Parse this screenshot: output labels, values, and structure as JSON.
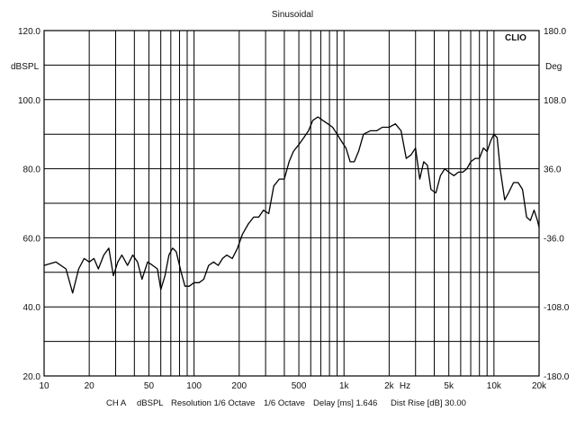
{
  "chart_data": {
    "type": "line",
    "title": "Sinusoidal",
    "brand": "CLIO",
    "xscale": "log",
    "xlim": [
      10,
      20000
    ],
    "ylim": [
      20,
      120
    ],
    "y2lim": [
      -180,
      180
    ],
    "ylabel": "dBSPL",
    "y2label": "Deg",
    "xunit_label": "Hz",
    "grid": true,
    "x_ticks": [
      {
        "value": 10,
        "label": "10"
      },
      {
        "value": 20,
        "label": "20"
      },
      {
        "value": 50,
        "label": "50"
      },
      {
        "value": 100,
        "label": "100"
      },
      {
        "value": 200,
        "label": "200"
      },
      {
        "value": 500,
        "label": "500"
      },
      {
        "value": 1000,
        "label": "1k"
      },
      {
        "value": 2000,
        "label": "2k"
      },
      {
        "value": 5000,
        "label": "5k"
      },
      {
        "value": 10000,
        "label": "10k"
      },
      {
        "value": 20000,
        "label": "20k"
      }
    ],
    "y_ticks": [
      {
        "value": 120,
        "label": "120.0"
      },
      {
        "value": 100,
        "label": "100.0"
      },
      {
        "value": 80,
        "label": "80.0"
      },
      {
        "value": 60,
        "label": "60.0"
      },
      {
        "value": 40,
        "label": "40.0"
      },
      {
        "value": 20,
        "label": "20.0"
      }
    ],
    "y2_ticks": [
      {
        "value": 180,
        "label": "180.0"
      },
      {
        "value": 108,
        "label": "108.0"
      },
      {
        "value": 36,
        "label": "36.0"
      },
      {
        "value": -36,
        "label": "-36.0"
      },
      {
        "value": -108,
        "label": "-108.0"
      },
      {
        "value": -180,
        "label": "-180.0"
      }
    ],
    "series": [
      {
        "color": "#000000",
        "x": [
          10,
          12,
          14,
          15.5,
          17,
          18.5,
          20,
          21.5,
          23,
          25,
          27,
          29,
          31,
          33,
          36,
          39,
          42,
          45,
          49,
          53,
          57,
          60,
          64,
          68,
          72,
          76,
          82,
          87,
          93,
          100,
          108,
          116,
          125,
          135,
          145,
          155,
          165,
          180,
          195,
          210,
          230,
          250,
          270,
          290,
          315,
          340,
          370,
          400,
          430,
          460,
          500,
          540,
          580,
          620,
          670,
          720,
          780,
          840,
          900,
          960,
          1030,
          1100,
          1170,
          1250,
          1350,
          1500,
          1650,
          1800,
          2000,
          2200,
          2400,
          2600,
          2800,
          3000,
          3200,
          3400,
          3600,
          3800,
          4100,
          4400,
          4700,
          5000,
          5400,
          5800,
          6200,
          6600,
          7000,
          7500,
          8000,
          8500,
          9000,
          9500,
          10000,
          10500,
          11000,
          11800,
          12500,
          13500,
          14500,
          15500,
          16500,
          17500,
          18500,
          19500,
          20000
        ],
        "y": [
          52,
          53,
          51,
          44,
          51,
          54,
          53,
          54,
          51,
          55,
          57,
          49,
          53,
          55,
          52,
          55,
          53,
          48,
          53,
          52,
          51,
          45,
          49,
          55,
          57,
          56,
          50,
          46,
          46,
          47,
          47,
          48,
          52,
          53,
          52,
          54,
          55,
          54,
          57,
          61,
          64,
          66,
          66,
          68,
          67,
          75,
          77,
          77,
          82,
          85,
          87,
          89,
          91,
          94,
          95,
          94,
          93,
          92,
          90,
          88,
          86,
          82,
          82,
          85,
          90,
          91,
          91,
          92,
          92,
          93,
          91,
          83,
          84,
          86,
          77,
          82,
          81,
          74,
          73,
          78,
          80,
          79,
          78,
          79,
          79,
          80,
          82,
          83,
          83,
          86,
          85,
          88,
          90,
          89,
          80,
          71,
          73,
          76,
          76,
          74,
          66,
          65,
          68,
          65,
          63
        ]
      }
    ]
  },
  "footer": {
    "channel": "CH A",
    "units": "dBSPL",
    "resolution": "Resolution 1/6 Octave",
    "octave": "1/6 Octave",
    "delay": "Delay [ms] 1.646",
    "dist_rise": "Dist Rise [dB] 30.00"
  }
}
